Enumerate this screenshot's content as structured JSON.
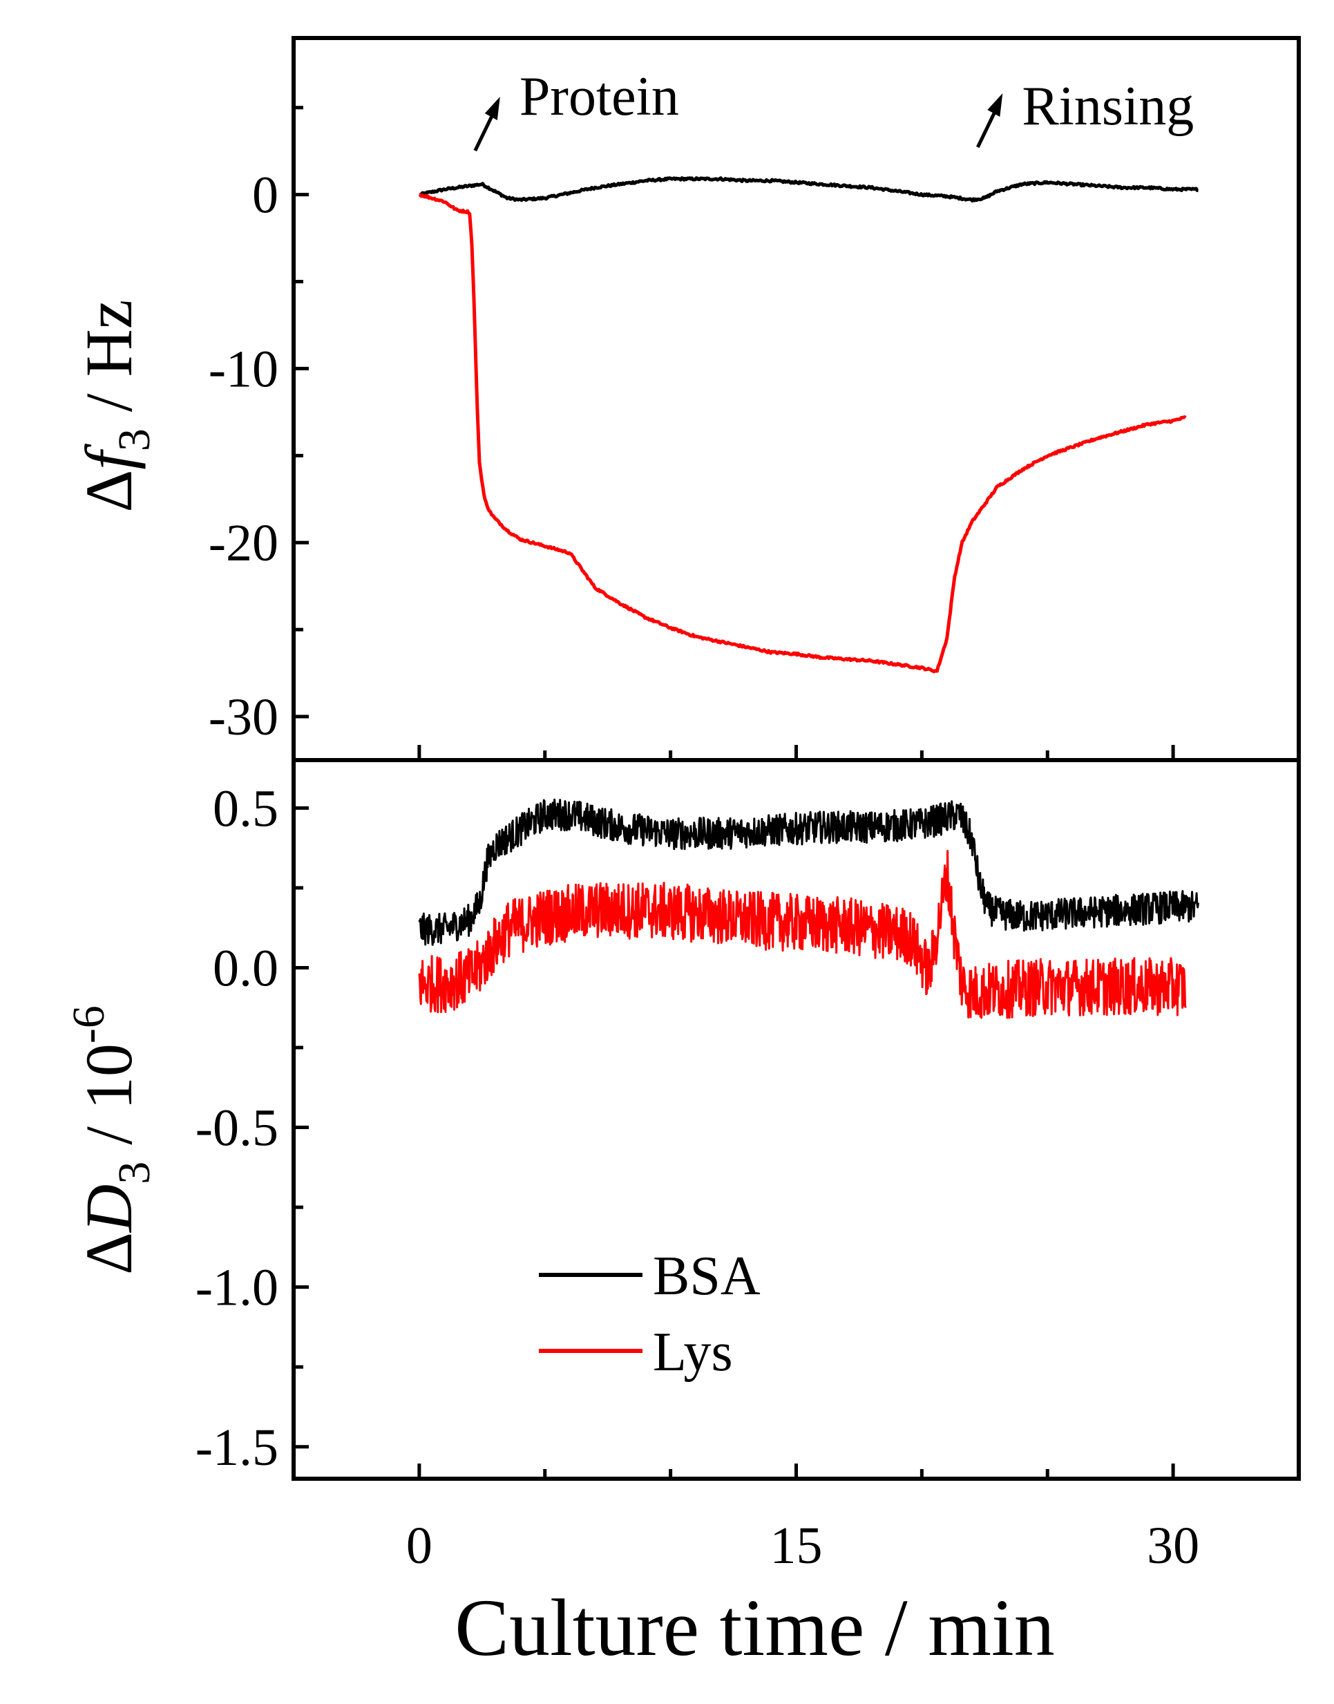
{
  "chart_data": [
    {
      "type": "line",
      "panel": "top",
      "ylabel": "Δf3 / Hz",
      "ylabel_parts": {
        "symbol": "Δ",
        "var": "f",
        "sub": "3",
        "unit": " / Hz"
      },
      "ylim": [
        -32.5,
        9
      ],
      "yticks": [
        0,
        -10,
        -20,
        -30
      ],
      "ytick_labels": [
        "0",
        "-10",
        "-20",
        "-30"
      ],
      "xlim": [
        -5,
        35
      ],
      "annotations": [
        {
          "text": "Protein",
          "x": 2.5
        },
        {
          "text": "Rinsing",
          "x": 22.5
        }
      ],
      "series": [
        {
          "name": "BSA",
          "color": "#000000",
          "x": [
            0,
            1,
            2,
            2.5,
            3,
            3.5,
            4,
            5,
            6,
            7,
            8,
            9,
            10,
            11,
            12,
            13,
            14,
            15,
            16,
            17,
            18,
            19,
            20,
            21,
            22,
            22.5,
            23,
            24,
            25,
            26,
            27,
            28,
            29,
            30,
            31
          ],
          "y": [
            0,
            0.3,
            0.5,
            0.6,
            0.2,
            -0.2,
            -0.3,
            -0.2,
            0.1,
            0.4,
            0.6,
            0.8,
            0.9,
            0.9,
            0.9,
            0.8,
            0.8,
            0.7,
            0.6,
            0.5,
            0.4,
            0.2,
            0,
            -0.1,
            -0.3,
            -0.2,
            0.2,
            0.6,
            0.7,
            0.6,
            0.5,
            0.4,
            0.4,
            0.3,
            0.3
          ]
        },
        {
          "name": "Lys",
          "color": "#ff0000",
          "x": [
            0,
            0.5,
            1,
            1.5,
            2,
            2.1,
            2.2,
            2.3,
            2.4,
            2.6,
            2.8,
            3,
            3.5,
            4,
            5,
            6,
            6.5,
            7,
            8,
            9,
            10,
            11,
            12,
            13,
            14,
            15,
            16,
            17,
            18,
            19,
            20,
            20.6,
            21,
            21.3,
            21.6,
            22,
            22.5,
            23,
            24,
            25,
            26,
            27,
            28,
            29,
            30,
            30.5
          ],
          "y": [
            0,
            -0.2,
            -0.4,
            -0.9,
            -1.0,
            -3,
            -7,
            -12,
            -15.5,
            -17.5,
            -18.2,
            -18.6,
            -19.3,
            -19.8,
            -20.2,
            -20.6,
            -21.6,
            -22.6,
            -23.5,
            -24.3,
            -24.9,
            -25.4,
            -25.7,
            -26.0,
            -26.3,
            -26.4,
            -26.6,
            -26.7,
            -26.8,
            -27.0,
            -27.2,
            -27.4,
            -25.5,
            -22.0,
            -20.0,
            -18.8,
            -17.8,
            -16.8,
            -15.8,
            -15.0,
            -14.5,
            -14.0,
            -13.6,
            -13.2,
            -13.0,
            -12.8
          ]
        }
      ]
    },
    {
      "type": "line",
      "panel": "bottom",
      "ylabel": "ΔD3 / 10-6",
      "ylabel_parts": {
        "symbol": "Δ",
        "var": "D",
        "sub": "3",
        "unit": " / 10",
        "sup": "-6"
      },
      "ylim": [
        -1.6,
        0.65
      ],
      "yticks": [
        0.5,
        0.0,
        -0.5,
        -1.0,
        -1.5
      ],
      "ytick_labels": [
        "0.5",
        "0.0",
        "-0.5",
        "-1.0",
        "-1.5"
      ],
      "xlim": [
        -5,
        35
      ],
      "xlabel": "Culture time / min",
      "xticks": [
        0,
        15,
        30
      ],
      "xtick_labels": [
        "0",
        "15",
        "30"
      ],
      "legend": {
        "placement": "lower-left",
        "entries": [
          "BSA",
          "Lys"
        ]
      },
      "series": [
        {
          "name": "BSA",
          "color": "#000000",
          "noise": 0.05,
          "x": [
            0,
            1,
            2,
            2.4,
            2.7,
            3,
            4,
            5,
            6,
            7,
            8,
            10,
            12,
            14,
            16,
            18,
            20,
            21.5,
            22,
            22.3,
            22.6,
            23,
            24,
            26,
            28,
            30,
            31
          ],
          "y": [
            0.12,
            0.12,
            0.15,
            0.2,
            0.33,
            0.38,
            0.43,
            0.48,
            0.48,
            0.46,
            0.44,
            0.42,
            0.42,
            0.43,
            0.44,
            0.44,
            0.45,
            0.48,
            0.4,
            0.26,
            0.19,
            0.17,
            0.16,
            0.17,
            0.18,
            0.19,
            0.19
          ]
        },
        {
          "name": "Lys",
          "color": "#ff0000",
          "noise": 0.09,
          "x": [
            0,
            1,
            2,
            2.4,
            2.8,
            3.5,
            5,
            7,
            9,
            11,
            13,
            15,
            17,
            19.5,
            20.3,
            20.7,
            21.0,
            21.3,
            21.6,
            22,
            23,
            25,
            27,
            29,
            30.5
          ],
          "y": [
            -0.05,
            -0.05,
            -0.03,
            0.0,
            0.05,
            0.12,
            0.16,
            0.18,
            0.18,
            0.17,
            0.15,
            0.14,
            0.13,
            0.1,
            -0.02,
            0.15,
            0.3,
            0.1,
            -0.05,
            -0.08,
            -0.07,
            -0.06,
            -0.06,
            -0.06,
            -0.06
          ]
        }
      ]
    }
  ]
}
